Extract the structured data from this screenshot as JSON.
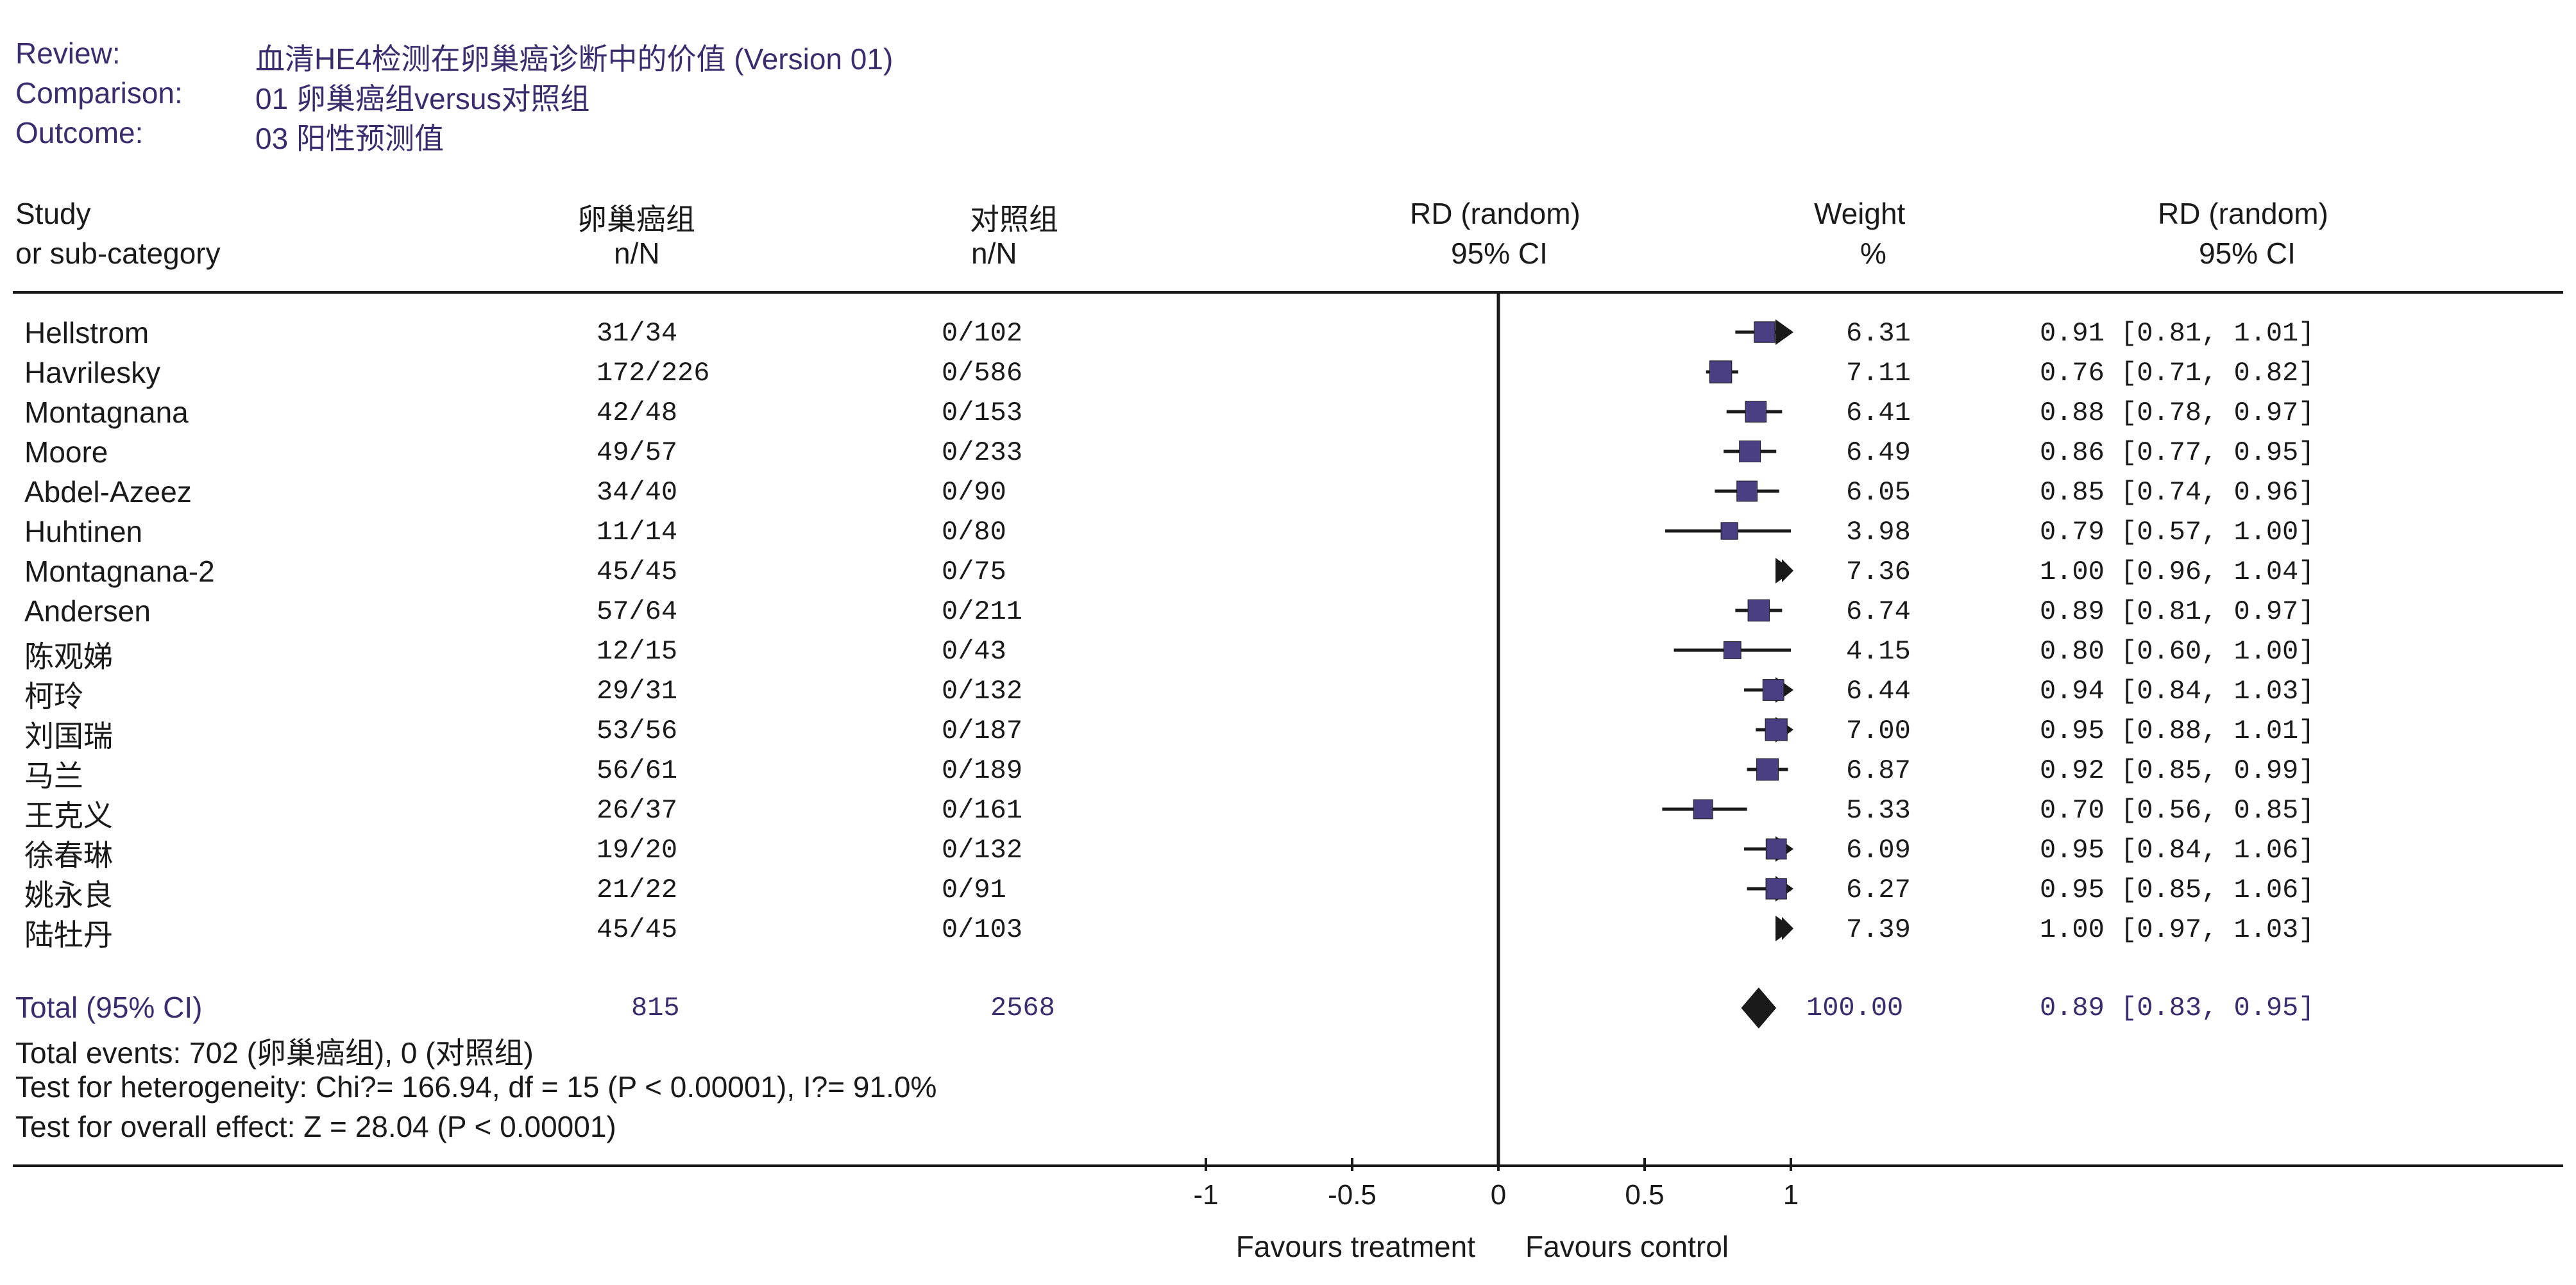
{
  "header": {
    "review_label": "Review:",
    "review_value": "血清HE4检测在卵巢癌诊断中的价值 (Version 01)",
    "comparison_label": "Comparison:",
    "comparison_value": "01 卵巢癌组versus对照组",
    "outcome_label": "Outcome:",
    "outcome_value": "03 阳性预测值"
  },
  "columns": {
    "study_1": "Study",
    "study_2": "or sub-category",
    "g1_1": "卵巢癌组",
    "g1_2": "n/N",
    "g2_1": "对照组",
    "g2_2": "n/N",
    "rd_plot_1": "RD (random)",
    "rd_plot_2": "95% CI",
    "weight_1": "Weight",
    "weight_2": "%",
    "rd_text_1": "RD (random)",
    "rd_text_2": "95% CI"
  },
  "colors": {
    "accent": "#3b2c6e",
    "marker": "#4a3f82",
    "line": "#1a1a1a"
  },
  "chart_data": {
    "type": "forest",
    "xlim": [
      -1,
      1
    ],
    "x_ticks": [
      "-1",
      "-0.5",
      "0",
      "0.5",
      "1"
    ],
    "x_tick_values": [
      -1,
      -0.5,
      0,
      0.5,
      1
    ],
    "favours_left": "Favours treatment",
    "favours_right": "Favours control",
    "studies": [
      {
        "name": "Hellstrom",
        "g1": "31/34",
        "g2": "0/102",
        "weight": "6.31",
        "rd_text": "0.91 [0.81, 1.01]",
        "rd": 0.91,
        "lo": 0.81,
        "hi": 1.01
      },
      {
        "name": "Havrilesky",
        "g1": "172/226",
        "g2": "0/586",
        "weight": "7.11",
        "rd_text": "0.76 [0.71, 0.82]",
        "rd": 0.76,
        "lo": 0.71,
        "hi": 0.82
      },
      {
        "name": "Montagnana",
        "g1": "42/48",
        "g2": "0/153",
        "weight": "6.41",
        "rd_text": "0.88 [0.78, 0.97]",
        "rd": 0.88,
        "lo": 0.78,
        "hi": 0.97
      },
      {
        "name": "Moore",
        "g1": "49/57",
        "g2": "0/233",
        "weight": "6.49",
        "rd_text": "0.86 [0.77, 0.95]",
        "rd": 0.86,
        "lo": 0.77,
        "hi": 0.95
      },
      {
        "name": "Abdel-Azeez",
        "g1": "34/40",
        "g2": "0/90",
        "weight": "6.05",
        "rd_text": "0.85 [0.74, 0.96]",
        "rd": 0.85,
        "lo": 0.74,
        "hi": 0.96
      },
      {
        "name": "Huhtinen",
        "g1": "11/14",
        "g2": "0/80",
        "weight": "3.98",
        "rd_text": "0.79 [0.57, 1.00]",
        "rd": 0.79,
        "lo": 0.57,
        "hi": 1.0
      },
      {
        "name": "Montagnana-2",
        "g1": "45/45",
        "g2": "0/75",
        "weight": "7.36",
        "rd_text": "1.00 [0.96, 1.04]",
        "rd": 1.0,
        "lo": 0.96,
        "hi": 1.04
      },
      {
        "name": "Andersen",
        "g1": "57/64",
        "g2": "0/211",
        "weight": "6.74",
        "rd_text": "0.89 [0.81, 0.97]",
        "rd": 0.89,
        "lo": 0.81,
        "hi": 0.97
      },
      {
        "name": "陈观娣",
        "g1": "12/15",
        "g2": "0/43",
        "weight": "4.15",
        "rd_text": "0.80 [0.60, 1.00]",
        "rd": 0.8,
        "lo": 0.6,
        "hi": 1.0
      },
      {
        "name": "柯玲",
        "g1": "29/31",
        "g2": "0/132",
        "weight": "6.44",
        "rd_text": "0.94 [0.84, 1.03]",
        "rd": 0.94,
        "lo": 0.84,
        "hi": 1.03
      },
      {
        "name": "刘国瑞",
        "g1": "53/56",
        "g2": "0/187",
        "weight": "7.00",
        "rd_text": "0.95 [0.88, 1.01]",
        "rd": 0.95,
        "lo": 0.88,
        "hi": 1.01
      },
      {
        "name": "马兰",
        "g1": "56/61",
        "g2": "0/189",
        "weight": "6.87",
        "rd_text": "0.92 [0.85, 0.99]",
        "rd": 0.92,
        "lo": 0.85,
        "hi": 0.99
      },
      {
        "name": "王克义",
        "g1": "26/37",
        "g2": "0/161",
        "weight": "5.33",
        "rd_text": "0.70 [0.56, 0.85]",
        "rd": 0.7,
        "lo": 0.56,
        "hi": 0.85
      },
      {
        "name": "徐春琳",
        "g1": "19/20",
        "g2": "0/132",
        "weight": "6.09",
        "rd_text": "0.95 [0.84, 1.06]",
        "rd": 0.95,
        "lo": 0.84,
        "hi": 1.06
      },
      {
        "name": "姚永良",
        "g1": "21/22",
        "g2": "0/91",
        "weight": "6.27",
        "rd_text": "0.95 [0.85, 1.06]",
        "rd": 0.95,
        "lo": 0.85,
        "hi": 1.06
      },
      {
        "name": "陆牡丹",
        "g1": "45/45",
        "g2": "0/103",
        "weight": "7.39",
        "rd_text": "1.00 [0.97, 1.03]",
        "rd": 1.0,
        "lo": 0.97,
        "hi": 1.03
      }
    ],
    "total": {
      "name": "Total (95% CI)",
      "g1": "815",
      "g2": "2568",
      "weight": "100.00",
      "rd_text": "0.89 [0.83, 0.95]",
      "rd": 0.89,
      "lo": 0.83,
      "hi": 0.95
    }
  },
  "footer": {
    "events": "Total events: 702 (卵巢癌组), 0 (对照组)",
    "heterogeneity": "Test for heterogeneity: Chi?= 166.94, df = 15 (P < 0.00001), I?= 91.0%",
    "overall": "Test for overall effect: Z = 28.04 (P < 0.00001)"
  }
}
